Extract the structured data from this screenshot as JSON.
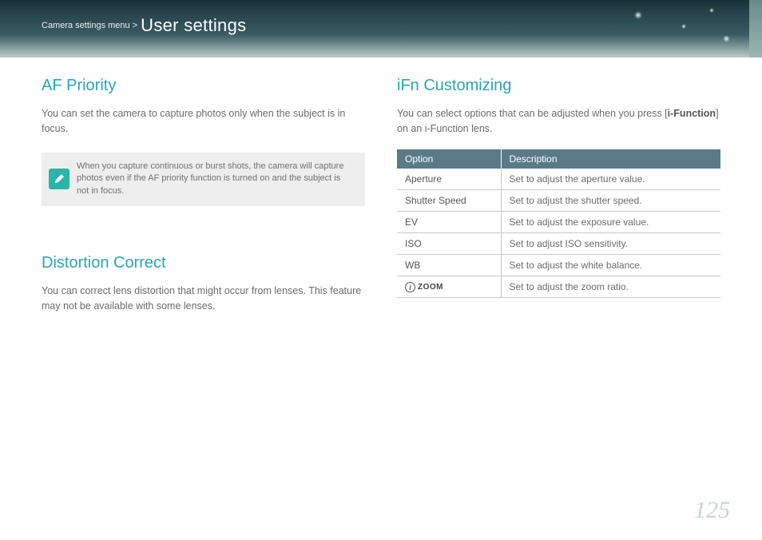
{
  "header": {
    "breadcrumb": "Camera settings menu >",
    "title": "User settings",
    "bg_gradient": [
      "#1a3038",
      "#2a4850",
      "#3a5a62",
      "#bcccc8"
    ]
  },
  "left_column": {
    "af_priority": {
      "title": "AF Priority",
      "body": "You can set the camera to capture photos only when the subject is in focus.",
      "note": "When you capture continuous or burst shots, the camera will capture photos even if the AF priority function is turned on and the subject is not in focus."
    },
    "distortion": {
      "title": "Distortion Correct",
      "body": "You can correct lens distortion that might occur from lenses. This feature may not be available with some lenses."
    }
  },
  "right_column": {
    "ifn": {
      "title": "iFn Customizing",
      "body_pre": "You can select options that can be adjusted when you press [",
      "body_bold": "i-Function",
      "body_post": "] on an i-Function lens.",
      "table": {
        "header_bg": "#5a7a88",
        "border_color": "#c8c8c8",
        "columns": [
          "Option",
          "Description"
        ],
        "rows": [
          {
            "option": "Aperture",
            "desc": "Set to adjust the aperture value."
          },
          {
            "option": "Shutter Speed",
            "desc": "Set to adjust the shutter speed."
          },
          {
            "option": "EV",
            "desc": "Set to adjust the exposure value."
          },
          {
            "option": "ISO",
            "desc": "Set to adjust ISO sensitivity."
          },
          {
            "option": "WB",
            "desc": "Set to adjust the white balance."
          },
          {
            "option": "__izoom__",
            "desc": "Set to adjust the zoom ratio."
          }
        ]
      }
    }
  },
  "colors": {
    "heading": "#2aa5b8",
    "body_text": "#6b6b6b",
    "note_bg": "#eeeeee",
    "note_icon_bg": "#2ab5a8",
    "page_num": "#c4d6d2"
  },
  "page_number": "125"
}
